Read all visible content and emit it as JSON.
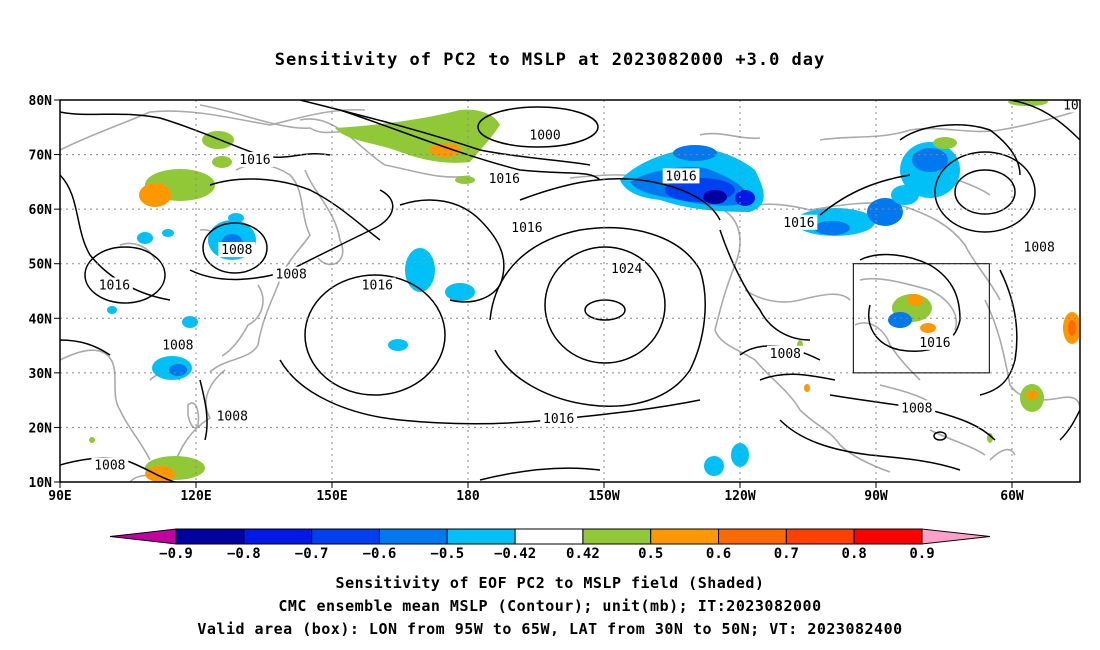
{
  "title": "Sensitivity of PC2 to MSLP at 2023082000 +3.0 day",
  "map": {
    "lat_labels": [
      "80N",
      "70N",
      "60N",
      "50N",
      "40N",
      "30N",
      "20N",
      "10N"
    ],
    "lat_values": [
      80,
      70,
      60,
      50,
      40,
      30,
      20,
      10
    ],
    "lon_labels": [
      "90E",
      "120E",
      "150E",
      "180",
      "150W",
      "120W",
      "90W",
      "60W"
    ],
    "lon_values": [
      90,
      120,
      150,
      180,
      210,
      240,
      270,
      300
    ],
    "extent": {
      "lon_min": 90,
      "lon_max": 315,
      "lat_min": 10,
      "lat_max": 80
    },
    "valid_box": {
      "lon_west": -95,
      "lon_east": -65,
      "lat_south": 30,
      "lat_north": 50
    },
    "contour_labels": [
      {
        "text": "1000",
        "lon": 197,
        "lat": 73.5
      },
      {
        "text": "1016",
        "lon": 133,
        "lat": 69
      },
      {
        "text": "1016",
        "lon": 188,
        "lat": 65.5
      },
      {
        "text": "1016",
        "lon": 227,
        "lat": 66
      },
      {
        "text": "1016",
        "lon": 193,
        "lat": 56.5
      },
      {
        "text": "1016",
        "lon": 253,
        "lat": 57.5
      },
      {
        "text": "1008",
        "lon": 129,
        "lat": 52.5
      },
      {
        "text": "1008",
        "lon": 141,
        "lat": 48
      },
      {
        "text": "1008",
        "lon": 306,
        "lat": 53
      },
      {
        "text": "1016",
        "lon": 102,
        "lat": 46
      },
      {
        "text": "1016",
        "lon": 160,
        "lat": 46
      },
      {
        "text": "1024",
        "lon": 215,
        "lat": 49
      },
      {
        "text": "1008",
        "lon": 116,
        "lat": 35
      },
      {
        "text": "1008",
        "lon": 250,
        "lat": 33.5
      },
      {
        "text": "1016",
        "lon": 283,
        "lat": 35.5
      },
      {
        "text": "1016",
        "lon": 200,
        "lat": 21.5
      },
      {
        "text": "1008",
        "lon": 128,
        "lat": 22
      },
      {
        "text": "1008",
        "lon": 101,
        "lat": 13
      },
      {
        "text": "1008",
        "lon": 279,
        "lat": 23.5
      },
      {
        "text": "10",
        "lon": 313,
        "lat": 79
      }
    ]
  },
  "colorbar": {
    "labels": [
      "-0.9",
      "-0.8",
      "-0.7",
      "-0.6",
      "-0.5",
      "-0.42",
      "0.42",
      "0.5",
      "0.6",
      "0.7",
      "0.8",
      "0.9"
    ],
    "colors": [
      "#0000a0",
      "#0018e8",
      "#0040f0",
      "#0078f0",
      "#00c0f8",
      "#ffffff",
      "#90c838",
      "#ff9800",
      "#ff6a00",
      "#ff4000",
      "#ff0000"
    ],
    "low_end_color": "#c000a0",
    "high_end_color": "#ffa0c8"
  },
  "captions": [
    "Sensitivity of EOF PC2 to MSLP field (Shaded)",
    "CMC ensemble mean MSLP (Contour); unit(mb); IT:2023082000",
    "Valid area (box): LON from 95W to 65W, LAT from 30N to 50N; VT: 2023082400"
  ]
}
